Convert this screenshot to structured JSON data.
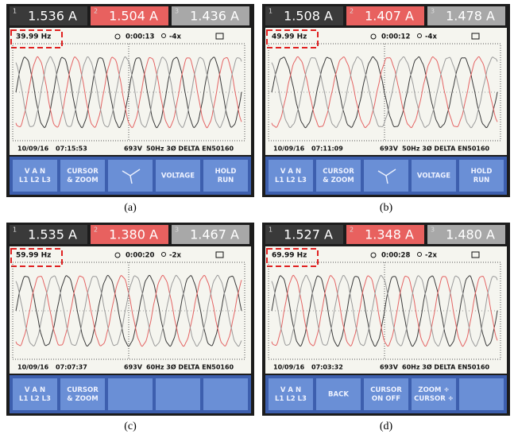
{
  "panels": [
    {
      "caption": "(a)",
      "readings": [
        {
          "phase": "1",
          "value": "1.536 A"
        },
        {
          "phase": "2",
          "value": "1.504 A"
        },
        {
          "phase": "3",
          "value": "1.436 A"
        }
      ],
      "frequency": "39.99 Hz",
      "timer": "0:00:13",
      "zoom": "-4x",
      "date": "10/09/16",
      "clock": "07:15:53",
      "voltage": "693V",
      "config": "50Hz 3Ø DELTA EN50160",
      "buttons": [
        [
          "V A N",
          "L1 L2 L3"
        ],
        [
          "CURSOR",
          "& ZOOM"
        ],
        [
          "VOLTAGE"
        ],
        [
          "HOLD",
          "RUN"
        ]
      ]
    },
    {
      "caption": "(b)",
      "readings": [
        {
          "phase": "1",
          "value": "1.508 A"
        },
        {
          "phase": "2",
          "value": "1.407 A"
        },
        {
          "phase": "3",
          "value": "1.478 A"
        }
      ],
      "frequency": "49.99 Hz",
      "timer": "0:00:12",
      "zoom": "-4x",
      "date": "10/09/16",
      "clock": "07:11:09",
      "voltage": "693V",
      "config": "50Hz 3Ø DELTA EN50160",
      "buttons": [
        [
          "V A N",
          "L1 L2 L3"
        ],
        [
          "CURSOR",
          "& ZOOM"
        ],
        [
          "VOLTAGE"
        ],
        [
          "HOLD",
          "RUN"
        ]
      ]
    },
    {
      "caption": "(c)",
      "readings": [
        {
          "phase": "1",
          "value": "1.535 A"
        },
        {
          "phase": "2",
          "value": "1.380 A"
        },
        {
          "phase": "3",
          "value": "1.467 A"
        }
      ],
      "frequency": "59.99 Hz",
      "timer": "0:00:20",
      "zoom": "-2x",
      "date": "10/09/16",
      "clock": "07:07:37",
      "voltage": "693V",
      "config": "60Hz 3Ø DELTA EN50160",
      "buttons": [
        [
          "V A N",
          "L1 L2 L3"
        ],
        [
          "CURSOR",
          "& ZOOM"
        ]
      ]
    },
    {
      "caption": "(d)",
      "readings": [
        {
          "phase": "1",
          "value": "1.527 A"
        },
        {
          "phase": "2",
          "value": "1.348 A"
        },
        {
          "phase": "3",
          "value": "1.480 A"
        }
      ],
      "frequency": "69.99 Hz",
      "timer": "0:00:28",
      "zoom": "-2x",
      "date": "10/09/16",
      "clock": "07:03:32",
      "voltage": "693V",
      "config": "60Hz 3Ø DELTA EN50160",
      "buttons": [
        [
          "V A N",
          "L1 L2 L3"
        ],
        [
          "BACK"
        ],
        [
          "CURSOR",
          "ON OFF"
        ],
        [
          "ZOOM ÷",
          "CURSOR ÷"
        ]
      ]
    }
  ]
}
